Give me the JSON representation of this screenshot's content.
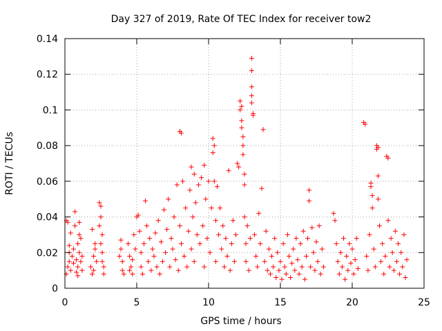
{
  "chart_data": {
    "type": "scatter",
    "title": "Day 327 of 2019, Rate Of TEC Index for receiver tow2",
    "xlabel": "GPS time / hours",
    "ylabel": "ROTI / TECUs",
    "xlim": [
      0,
      25
    ],
    "ylim": [
      0,
      0.14
    ],
    "xticks": [
      0,
      5,
      10,
      15,
      20,
      25
    ],
    "yticks": [
      0,
      0.02,
      0.04,
      0.06,
      0.08,
      0.1,
      0.12,
      0.14
    ],
    "xtick_labels": [
      "0",
      "5",
      "10",
      "15",
      "20",
      "25"
    ],
    "ytick_labels": [
      "0",
      "0.02",
      "0.04",
      "0.06",
      "0.08",
      "0.1",
      "0.12",
      "0.14"
    ],
    "grid": true,
    "marker": "+",
    "color": "#ff0000",
    "series": [
      {
        "name": "ROTI",
        "points": [
          [
            0.1,
            0.038
          ],
          [
            0.2,
            0.037
          ],
          [
            0.3,
            0.024
          ],
          [
            0.3,
            0.015
          ],
          [
            0.2,
            0.012
          ],
          [
            0.4,
            0.01
          ],
          [
            0.5,
            0.018
          ],
          [
            0.1,
            0.008
          ],
          [
            0.4,
            0.031
          ],
          [
            0.3,
            0.02
          ],
          [
            0.6,
            0.014
          ],
          [
            0.6,
            0.022
          ],
          [
            0.7,
            0.043
          ],
          [
            0.8,
            0.009
          ],
          [
            0.8,
            0.016
          ],
          [
            0.9,
            0.025
          ],
          [
            0.9,
            0.012
          ],
          [
            1.0,
            0.037
          ],
          [
            1.0,
            0.02
          ],
          [
            1.1,
            0.015
          ],
          [
            1.1,
            0.028
          ],
          [
            1.2,
            0.01
          ],
          [
            1.2,
            0.018
          ],
          [
            0.9,
            0.007
          ],
          [
            1.0,
            0.03
          ],
          [
            0.7,
            0.035
          ],
          [
            1.8,
            0.012
          ],
          [
            1.9,
            0.033
          ],
          [
            2.0,
            0.018
          ],
          [
            2.0,
            0.01
          ],
          [
            2.1,
            0.025
          ],
          [
            2.2,
            0.015
          ],
          [
            1.9,
            0.008
          ],
          [
            2.1,
            0.022
          ],
          [
            2.4,
            0.048
          ],
          [
            2.5,
            0.046
          ],
          [
            2.5,
            0.04
          ],
          [
            2.6,
            0.03
          ],
          [
            2.6,
            0.02
          ],
          [
            2.7,
            0.012
          ],
          [
            2.7,
            0.008
          ],
          [
            2.5,
            0.025
          ],
          [
            2.6,
            0.015
          ],
          [
            2.4,
            0.035
          ],
          [
            3.9,
            0.027
          ],
          [
            3.9,
            0.022
          ],
          [
            4.0,
            0.015
          ],
          [
            4.0,
            0.01
          ],
          [
            4.1,
            0.008
          ],
          [
            3.8,
            0.018
          ],
          [
            4.4,
            0.025
          ],
          [
            4.5,
            0.018
          ],
          [
            4.6,
            0.012
          ],
          [
            4.7,
            0.008
          ],
          [
            4.8,
            0.03
          ],
          [
            4.9,
            0.022
          ],
          [
            4.5,
            0.01
          ],
          [
            4.7,
            0.016
          ],
          [
            5.0,
            0.04
          ],
          [
            5.1,
            0.041
          ],
          [
            5.2,
            0.032
          ],
          [
            5.3,
            0.02
          ],
          [
            5.3,
            0.012
          ],
          [
            5.4,
            0.008
          ],
          [
            5.5,
            0.025
          ],
          [
            5.6,
            0.049
          ],
          [
            5.7,
            0.035
          ],
          [
            5.8,
            0.015
          ],
          [
            5.9,
            0.028
          ],
          [
            6.0,
            0.01
          ],
          [
            6.1,
            0.022
          ],
          [
            6.2,
            0.018
          ],
          [
            6.3,
            0.031
          ],
          [
            6.4,
            0.012
          ],
          [
            6.5,
            0.038
          ],
          [
            6.6,
            0.008
          ],
          [
            6.7,
            0.026
          ],
          [
            6.8,
            0.015
          ],
          [
            6.9,
            0.044
          ],
          [
            7.0,
            0.02
          ],
          [
            7.1,
            0.033
          ],
          [
            7.2,
            0.05
          ],
          [
            7.3,
            0.012
          ],
          [
            7.4,
            0.028
          ],
          [
            7.5,
            0.022
          ],
          [
            7.6,
            0.04
          ],
          [
            7.7,
            0.016
          ],
          [
            7.8,
            0.058
          ],
          [
            7.9,
            0.01
          ],
          [
            8.0,
            0.035
          ],
          [
            8.0,
            0.088
          ],
          [
            8.1,
            0.087
          ],
          [
            8.1,
            0.025
          ],
          [
            8.2,
            0.06
          ],
          [
            8.3,
            0.018
          ],
          [
            8.4,
            0.045
          ],
          [
            8.5,
            0.012
          ],
          [
            8.6,
            0.032
          ],
          [
            8.7,
            0.055
          ],
          [
            8.8,
            0.068
          ],
          [
            8.8,
            0.022
          ],
          [
            8.9,
            0.04
          ],
          [
            9.0,
            0.064
          ],
          [
            9.0,
            0.015
          ],
          [
            9.1,
            0.048
          ],
          [
            9.2,
            0.03
          ],
          [
            9.3,
            0.058
          ],
          [
            9.4,
            0.025
          ],
          [
            9.5,
            0.062
          ],
          [
            9.6,
            0.035
          ],
          [
            9.7,
            0.069
          ],
          [
            9.7,
            0.012
          ],
          [
            9.8,
            0.05
          ],
          [
            9.9,
            0.028
          ],
          [
            10.0,
            0.06
          ],
          [
            10.1,
            0.02
          ],
          [
            10.2,
            0.045
          ],
          [
            10.3,
            0.084
          ],
          [
            10.3,
            0.076
          ],
          [
            10.4,
            0.08
          ],
          [
            10.4,
            0.06
          ],
          [
            10.5,
            0.038
          ],
          [
            10.5,
            0.015
          ],
          [
            10.6,
            0.057
          ],
          [
            10.7,
            0.03
          ],
          [
            10.8,
            0.045
          ],
          [
            10.9,
            0.022
          ],
          [
            11.0,
            0.035
          ],
          [
            11.1,
            0.012
          ],
          [
            11.2,
            0.028
          ],
          [
            11.3,
            0.018
          ],
          [
            11.4,
            0.066
          ],
          [
            11.5,
            0.01
          ],
          [
            11.6,
            0.025
          ],
          [
            11.7,
            0.038
          ],
          [
            11.8,
            0.015
          ],
          [
            11.9,
            0.03
          ],
          [
            12.0,
            0.07
          ],
          [
            12.1,
            0.068
          ],
          [
            12.2,
            0.105
          ],
          [
            12.2,
            0.1
          ],
          [
            12.3,
            0.102
          ],
          [
            12.3,
            0.094
          ],
          [
            12.3,
            0.09
          ],
          [
            12.4,
            0.085
          ],
          [
            12.4,
            0.075
          ],
          [
            12.4,
            0.08
          ],
          [
            12.5,
            0.064
          ],
          [
            12.5,
            0.058
          ],
          [
            12.5,
            0.04
          ],
          [
            12.6,
            0.025
          ],
          [
            12.6,
            0.015
          ],
          [
            12.7,
            0.035
          ],
          [
            12.8,
            0.01
          ],
          [
            12.9,
            0.028
          ],
          [
            13.0,
            0.129
          ],
          [
            13.0,
            0.122
          ],
          [
            13.0,
            0.113
          ],
          [
            13.0,
            0.108
          ],
          [
            13.0,
            0.104
          ],
          [
            13.1,
            0.098
          ],
          [
            13.1,
            0.097
          ],
          [
            13.2,
            0.03
          ],
          [
            13.3,
            0.018
          ],
          [
            13.4,
            0.012
          ],
          [
            13.5,
            0.042
          ],
          [
            13.6,
            0.025
          ],
          [
            13.7,
            0.056
          ],
          [
            13.8,
            0.089
          ],
          [
            13.9,
            0.015
          ],
          [
            14.0,
            0.032
          ],
          [
            14.1,
            0.01
          ],
          [
            14.2,
            0.022
          ],
          [
            14.3,
            0.008
          ],
          [
            14.4,
            0.018
          ],
          [
            14.5,
            0.012
          ],
          [
            14.6,
            0.028
          ],
          [
            14.7,
            0.006
          ],
          [
            14.8,
            0.02
          ],
          [
            14.9,
            0.01
          ],
          [
            15.0,
            0.015
          ],
          [
            15.1,
            0.005
          ],
          [
            15.2,
            0.025
          ],
          [
            15.3,
            0.012
          ],
          [
            15.4,
            0.008
          ],
          [
            15.5,
            0.03
          ],
          [
            15.6,
            0.018
          ],
          [
            15.7,
            0.006
          ],
          [
            15.8,
            0.014
          ],
          [
            15.9,
            0.022
          ],
          [
            16.0,
            0.01
          ],
          [
            16.1,
            0.028
          ],
          [
            16.2,
            0.016
          ],
          [
            16.3,
            0.008
          ],
          [
            16.4,
            0.025
          ],
          [
            16.5,
            0.012
          ],
          [
            16.6,
            0.032
          ],
          [
            16.7,
            0.005
          ],
          [
            16.8,
            0.018
          ],
          [
            16.9,
            0.028
          ],
          [
            17.0,
            0.055
          ],
          [
            17.0,
            0.049
          ],
          [
            17.1,
            0.012
          ],
          [
            17.2,
            0.034
          ],
          [
            17.3,
            0.02
          ],
          [
            17.4,
            0.01
          ],
          [
            17.5,
            0.026
          ],
          [
            17.6,
            0.015
          ],
          [
            17.7,
            0.035
          ],
          [
            17.8,
            0.008
          ],
          [
            17.9,
            0.022
          ],
          [
            18.0,
            0.012
          ],
          [
            18.7,
            0.042
          ],
          [
            18.8,
            0.038
          ],
          [
            18.9,
            0.025
          ],
          [
            19.0,
            0.015
          ],
          [
            19.1,
            0.008
          ],
          [
            19.2,
            0.02
          ],
          [
            19.3,
            0.012
          ],
          [
            19.4,
            0.028
          ],
          [
            19.5,
            0.005
          ],
          [
            19.6,
            0.018
          ],
          [
            19.7,
            0.01
          ],
          [
            19.8,
            0.025
          ],
          [
            19.9,
            0.014
          ],
          [
            20.0,
            0.022
          ],
          [
            20.1,
            0.008
          ],
          [
            20.2,
            0.016
          ],
          [
            20.3,
            0.028
          ],
          [
            20.4,
            0.011
          ],
          [
            20.8,
            0.093
          ],
          [
            20.9,
            0.092
          ],
          [
            21.0,
            0.018
          ],
          [
            21.1,
            0.01
          ],
          [
            21.2,
            0.03
          ],
          [
            21.3,
            0.059
          ],
          [
            21.3,
            0.057
          ],
          [
            21.4,
            0.052
          ],
          [
            21.4,
            0.045
          ],
          [
            21.5,
            0.022
          ],
          [
            21.6,
            0.012
          ],
          [
            21.7,
            0.08
          ],
          [
            21.7,
            0.078
          ],
          [
            21.8,
            0.079
          ],
          [
            21.8,
            0.063
          ],
          [
            21.8,
            0.05
          ],
          [
            21.9,
            0.035
          ],
          [
            22.0,
            0.015
          ],
          [
            22.1,
            0.025
          ],
          [
            22.2,
            0.008
          ],
          [
            22.3,
            0.018
          ],
          [
            22.4,
            0.074
          ],
          [
            22.5,
            0.073
          ],
          [
            22.5,
            0.038
          ],
          [
            22.6,
            0.012
          ],
          [
            22.7,
            0.028
          ],
          [
            22.8,
            0.02
          ],
          [
            22.9,
            0.01
          ],
          [
            23.0,
            0.032
          ],
          [
            23.1,
            0.015
          ],
          [
            23.2,
            0.025
          ],
          [
            23.3,
            0.008
          ],
          [
            23.4,
            0.02
          ],
          [
            23.5,
            0.012
          ],
          [
            23.6,
            0.03
          ],
          [
            23.7,
            0.006
          ],
          [
            23.8,
            0.016
          ]
        ]
      }
    ]
  }
}
